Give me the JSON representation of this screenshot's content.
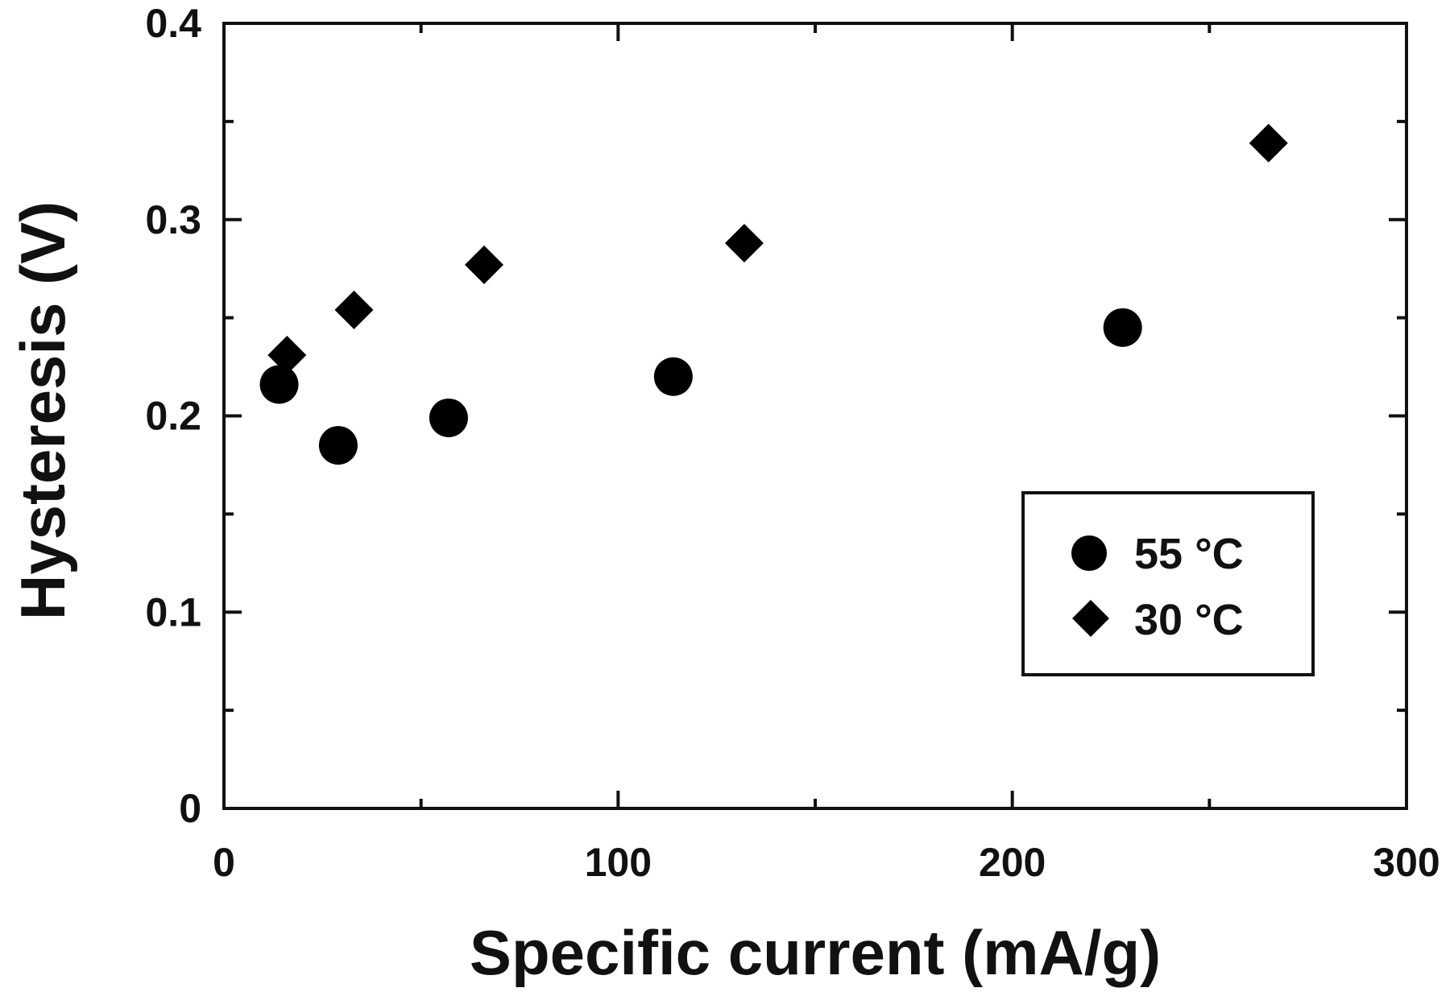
{
  "chart_data": {
    "type": "scatter",
    "title": "",
    "xlabel": "Specific current (mA/g)",
    "ylabel": "Hysteresis (V)",
    "xlim": [
      0,
      300
    ],
    "ylim": [
      0,
      0.4
    ],
    "xticks": [
      0,
      100,
      200,
      300
    ],
    "xtick_labels": [
      "0",
      "100",
      "200",
      "300"
    ],
    "xminor_ticks": [
      50,
      150,
      250
    ],
    "yticks": [
      0,
      0.1,
      0.2,
      0.3,
      0.4
    ],
    "ytick_labels": [
      "0",
      "0.1",
      "0.2",
      "0.3",
      "0.4"
    ],
    "yminor_ticks": [
      0.05,
      0.15,
      0.25,
      0.35
    ],
    "grid": false,
    "legend_position": "lower right (inside plot)",
    "series": [
      {
        "name": "55 °C",
        "marker": "circle",
        "color": "#000000",
        "x": [
          14,
          29,
          57,
          114,
          228
        ],
        "y": [
          0.216,
          0.185,
          0.199,
          0.22,
          0.245
        ]
      },
      {
        "name": "30 °C",
        "marker": "diamond",
        "color": "#000000",
        "x": [
          16,
          33,
          66,
          132,
          265
        ],
        "y": [
          0.231,
          0.254,
          0.277,
          0.288,
          0.339
        ]
      }
    ]
  },
  "legend": {
    "items": [
      {
        "label": "55 °C",
        "marker": "circle"
      },
      {
        "label": "30 °C",
        "marker": "diamond"
      }
    ]
  }
}
